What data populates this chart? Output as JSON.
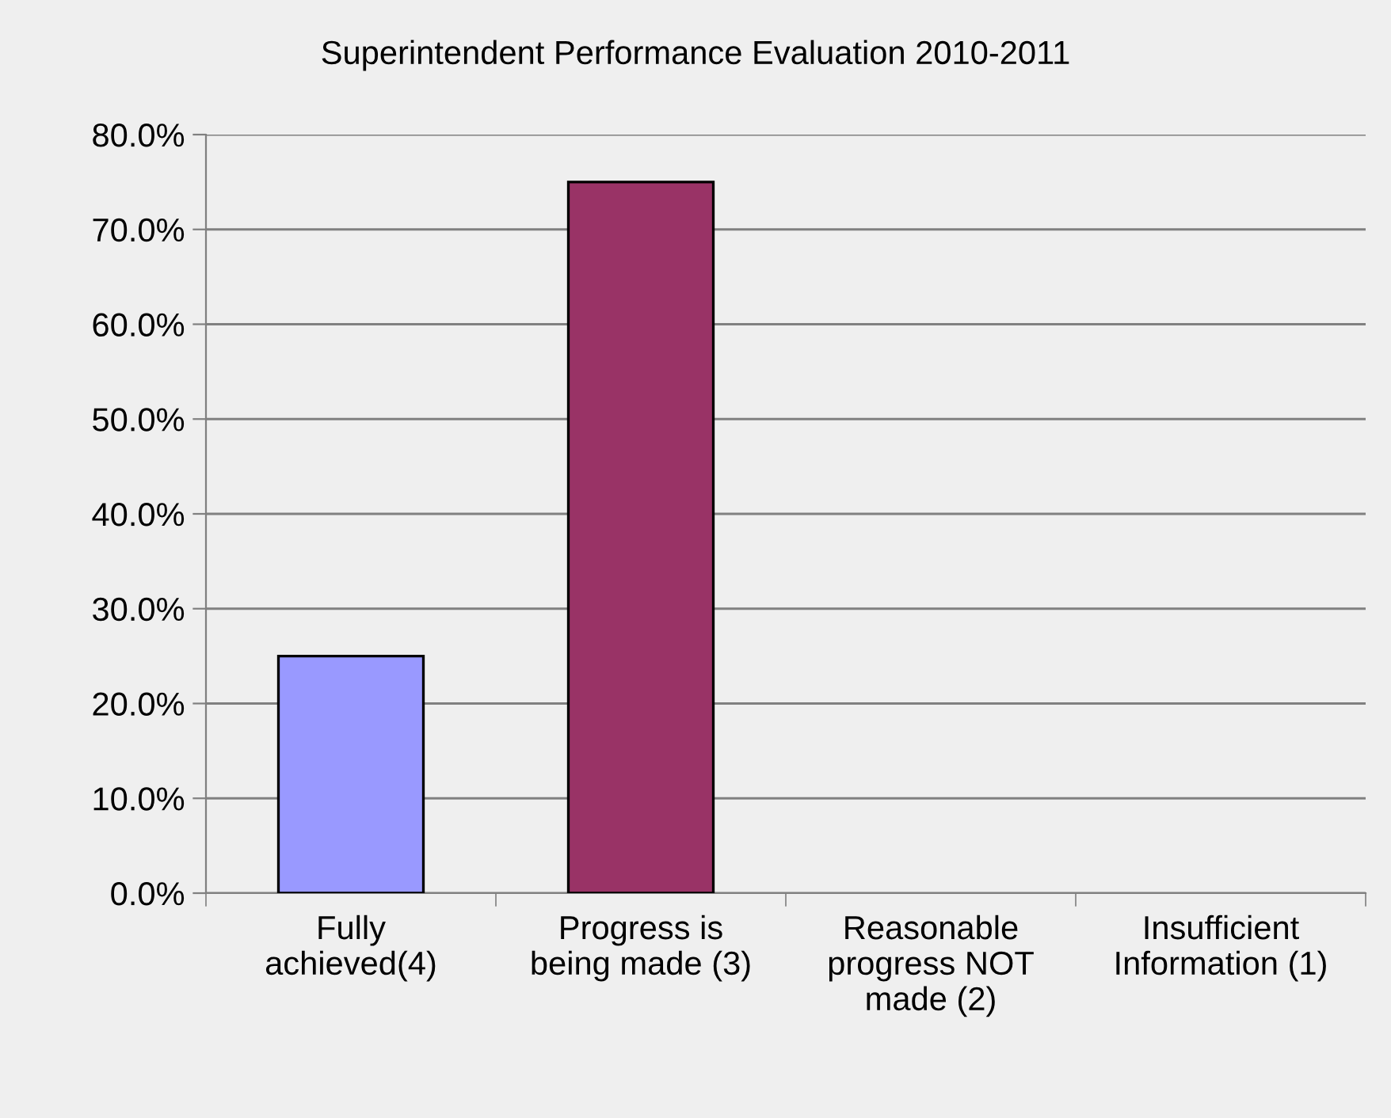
{
  "chart_data": {
    "type": "bar",
    "title": "Superintendent Performance Evaluation 2010-2011",
    "categories": [
      "Fully\nachieved(4)",
      "Progress is\nbeing made (3)",
      "Reasonable\nprogress NOT\nmade (2)",
      "Insufficient\nInformation (1)"
    ],
    "values": [
      25,
      75,
      0,
      0
    ],
    "colors": [
      "#9999ff",
      "#993366",
      "#9999ff",
      "#993366"
    ],
    "ylim": [
      0,
      80
    ],
    "yticks": [
      {
        "value": 0,
        "label": "0.0%"
      },
      {
        "value": 10,
        "label": "10.0%"
      },
      {
        "value": 20,
        "label": "20.0%"
      },
      {
        "value": 30,
        "label": "30.0%"
      },
      {
        "value": 40,
        "label": "40.0%"
      },
      {
        "value": 50,
        "label": "50.0%"
      },
      {
        "value": 60,
        "label": "60.0%"
      },
      {
        "value": 70,
        "label": "70.0%"
      },
      {
        "value": 80,
        "label": "80.0%"
      }
    ],
    "grid": "y",
    "legend": false
  }
}
